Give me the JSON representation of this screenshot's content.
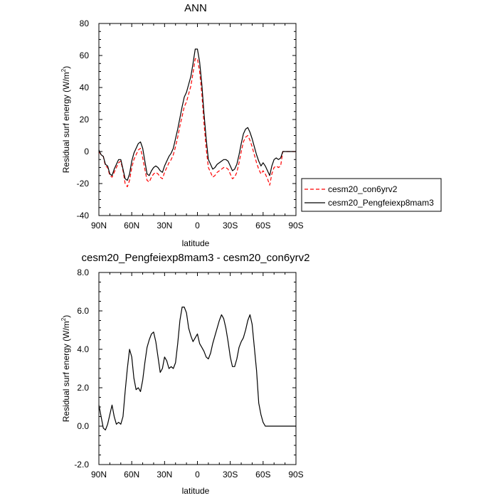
{
  "chart_data": [
    {
      "type": "line",
      "title": "ANN",
      "xlabel": "latitude",
      "ylabel": "Residual surf energy (W/m",
      "ylabel_sup": "2",
      "ylabel_end": ")",
      "xlim": [
        90,
        -90
      ],
      "ylim": [
        -40,
        80
      ],
      "x_ticks": [
        90,
        60,
        30,
        0,
        -30,
        -60,
        -90
      ],
      "x_tick_labels": [
        "90N",
        "60N",
        "30N",
        "0",
        "30S",
        "60S",
        "90S"
      ],
      "y_ticks": [
        -40,
        -20,
        0,
        20,
        40,
        60,
        80
      ],
      "y_tick_labels": [
        "-40",
        "-20",
        "0",
        "20",
        "40",
        "60",
        "80"
      ],
      "grid": false,
      "legend": "right",
      "series": [
        {
          "name": "cesm20_con6yrv2",
          "color": "#ff0000",
          "dash": "dashed",
          "x": [
            90,
            88,
            86,
            84,
            82,
            80,
            78,
            76,
            74,
            72,
            70,
            68,
            66,
            64,
            62,
            60,
            58,
            56,
            54,
            52,
            50,
            48,
            46,
            44,
            42,
            40,
            38,
            36,
            34,
            32,
            30,
            28,
            26,
            24,
            22,
            20,
            18,
            16,
            14,
            12,
            10,
            8,
            6,
            4,
            2,
            0,
            -2,
            -4,
            -6,
            -8,
            -10,
            -12,
            -14,
            -16,
            -18,
            -20,
            -22,
            -24,
            -26,
            -28,
            -30,
            -32,
            -34,
            -36,
            -38,
            -40,
            -42,
            -44,
            -46,
            -48,
            -50,
            -52,
            -54,
            -56,
            -58,
            -60,
            -62,
            -64,
            -66,
            -68,
            -70,
            -72,
            -74,
            -76,
            -78,
            -80,
            -82,
            -84,
            -86,
            -88,
            -90
          ],
          "values": [
            0,
            -2,
            -3,
            -9,
            -10,
            -15,
            -16,
            -13,
            -10,
            -7,
            -6,
            -12,
            -20,
            -22,
            -18,
            -10,
            -5,
            -2,
            1,
            2,
            -4,
            -11,
            -18,
            -19,
            -16,
            -14,
            -13,
            -14,
            -16,
            -17,
            -13,
            -10,
            -7,
            -5,
            -2,
            3,
            9,
            16,
            22,
            28,
            31,
            36,
            41,
            49,
            58,
            58,
            50,
            36,
            18,
            2,
            -10,
            -13,
            -16,
            -15,
            -13,
            -12,
            -11,
            -10,
            -10,
            -11,
            -14,
            -17,
            -16,
            -13,
            -7,
            0,
            6,
            9,
            10,
            7,
            3,
            -2,
            -7,
            -11,
            -14,
            -12,
            -14,
            -17,
            -21,
            -14,
            -10,
            -9,
            -10,
            -9,
            0,
            0,
            0,
            0,
            0,
            0,
            0
          ]
        },
        {
          "name": "cesm20_Pengfeiexp8mam3",
          "color": "#000000",
          "dash": "solid",
          "x": [
            90,
            88,
            86,
            84,
            82,
            80,
            78,
            76,
            74,
            72,
            70,
            68,
            66,
            64,
            62,
            60,
            58,
            56,
            54,
            52,
            50,
            48,
            46,
            44,
            42,
            40,
            38,
            36,
            34,
            32,
            30,
            28,
            26,
            24,
            22,
            20,
            18,
            16,
            14,
            12,
            10,
            8,
            6,
            4,
            2,
            0,
            -2,
            -4,
            -6,
            -8,
            -10,
            -12,
            -14,
            -16,
            -18,
            -20,
            -22,
            -24,
            -26,
            -28,
            -30,
            -32,
            -34,
            -36,
            -38,
            -40,
            -42,
            -44,
            -46,
            -48,
            -50,
            -52,
            -54,
            -56,
            -58,
            -60,
            -62,
            -64,
            -66,
            -68,
            -70,
            -72,
            -74,
            -76,
            -78,
            -80,
            -82,
            -84,
            -86,
            -88,
            -90
          ],
          "values": [
            1,
            -2,
            -3,
            -8,
            -9,
            -14,
            -15,
            -11,
            -8,
            -5,
            -5,
            -11,
            -17,
            -18,
            -14,
            -6,
            -1,
            2,
            5,
            6,
            2,
            -6,
            -14,
            -15,
            -12,
            -10,
            -9,
            -10,
            -12,
            -13,
            -9,
            -6,
            -3,
            -1,
            2,
            8,
            14,
            21,
            28,
            34,
            37,
            42,
            47,
            55,
            64,
            64,
            56,
            42,
            24,
            8,
            -5,
            -8,
            -11,
            -10,
            -8,
            -7,
            -6,
            -5,
            -5,
            -6,
            -9,
            -12,
            -11,
            -8,
            -2,
            5,
            11,
            14,
            15,
            12,
            8,
            3,
            -2,
            -6,
            -9,
            -7,
            -9,
            -12,
            -15,
            -9,
            -5,
            -4,
            -5,
            -4,
            0,
            0,
            0,
            0,
            0,
            0,
            0
          ]
        }
      ]
    },
    {
      "type": "line",
      "title": "cesm20_Pengfeiexp8mam3 - cesm20_con6yrv2",
      "xlabel": "latitude",
      "ylabel": "Residual surf energy (W/m",
      "ylabel_sup": "2",
      "ylabel_end": ")",
      "xlim": [
        90,
        -90
      ],
      "ylim": [
        -2,
        8
      ],
      "x_ticks": [
        90,
        60,
        30,
        0,
        -30,
        -60,
        -90
      ],
      "x_tick_labels": [
        "90N",
        "60N",
        "30N",
        "0",
        "30S",
        "60S",
        "90S"
      ],
      "y_ticks": [
        -2,
        0,
        2,
        4,
        6,
        8
      ],
      "y_tick_labels": [
        "-2.0",
        "0.0",
        "2.0",
        "4.0",
        "6.0",
        "8.0"
      ],
      "grid": false,
      "series": [
        {
          "color": "#000000",
          "dash": "solid",
          "x": [
            90,
            88,
            86,
            84,
            82,
            80,
            78,
            76,
            74,
            72,
            70,
            68,
            66,
            64,
            62,
            60,
            58,
            56,
            54,
            52,
            50,
            48,
            46,
            44,
            42,
            40,
            38,
            36,
            34,
            32,
            30,
            28,
            26,
            24,
            22,
            20,
            18,
            16,
            14,
            12,
            10,
            8,
            6,
            4,
            2,
            0,
            -2,
            -4,
            -6,
            -8,
            -10,
            -12,
            -14,
            -16,
            -18,
            -20,
            -22,
            -24,
            -26,
            -28,
            -30,
            -32,
            -34,
            -36,
            -38,
            -40,
            -42,
            -44,
            -46,
            -48,
            -50,
            -52,
            -54,
            -56,
            -58,
            -60,
            -62,
            -64,
            -66,
            -68,
            -70,
            -72,
            -74,
            -76,
            -78,
            -80,
            -82,
            -84,
            -86,
            -88,
            -90
          ],
          "values": [
            1.1,
            0.5,
            -0.1,
            -0.2,
            0.1,
            0.6,
            1.1,
            0.5,
            0.1,
            0.2,
            0.1,
            0.5,
            1.8,
            3.0,
            4.0,
            3.6,
            2.5,
            1.9,
            2.0,
            1.8,
            2.4,
            3.3,
            4.1,
            4.5,
            4.8,
            4.9,
            4.4,
            3.6,
            2.8,
            3.0,
            3.6,
            3.4,
            3.0,
            3.1,
            3.0,
            3.3,
            4.3,
            5.5,
            6.2,
            6.2,
            5.9,
            5.1,
            4.7,
            4.4,
            4.6,
            4.8,
            4.3,
            4.1,
            3.9,
            3.6,
            3.5,
            3.8,
            4.3,
            4.7,
            5.1,
            5.5,
            5.8,
            5.6,
            5.1,
            4.4,
            3.6,
            3.1,
            3.1,
            3.5,
            4.1,
            4.4,
            4.6,
            5.0,
            5.5,
            5.8,
            5.3,
            4.1,
            2.9,
            1.2,
            0.6,
            0.2,
            0.0,
            0.0,
            0.0,
            0.0,
            0.0,
            0.0,
            0.0,
            0.0,
            0.0,
            0.0,
            0.0,
            0.0,
            0.0,
            0.0,
            0.0
          ]
        }
      ]
    }
  ]
}
